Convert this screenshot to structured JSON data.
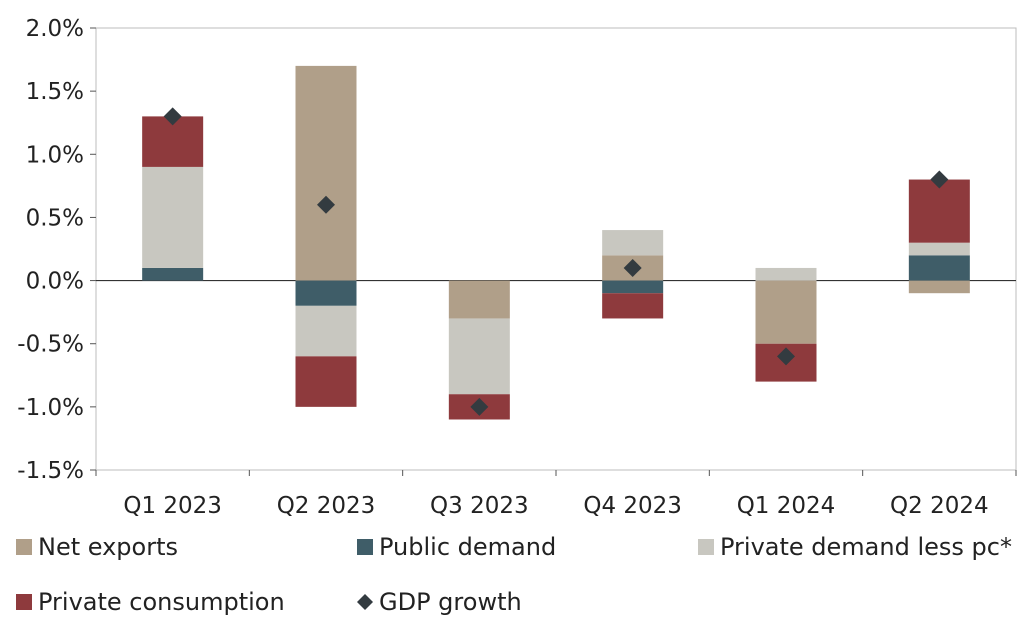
{
  "chart_data": {
    "type": "bar",
    "stacked": true,
    "categories": [
      "Q1 2023",
      "Q2 2023",
      "Q3 2023",
      "Q4 2023",
      "Q1 2024",
      "Q2 2024"
    ],
    "ylim": [
      -1.5,
      2.0
    ],
    "yticks": [
      -1.5,
      -1.0,
      -0.5,
      0.0,
      0.5,
      1.0,
      1.5,
      2.0
    ],
    "ytick_labels": [
      "-1.5%",
      "-1.0%",
      "-0.5%",
      "0.0%",
      "0.5%",
      "1.0%",
      "1.5%",
      "2.0%"
    ],
    "series": [
      {
        "name": "Net exports",
        "color": "#b09f89",
        "values": [
          0.0,
          1.7,
          -0.3,
          0.2,
          -0.5,
          -0.1
        ]
      },
      {
        "name": "Public demand",
        "color": "#3f5d68",
        "values": [
          0.1,
          -0.2,
          0.0,
          -0.1,
          0.0,
          0.2
        ]
      },
      {
        "name": "Private demand less pc*",
        "color": "#c8c7c0",
        "values": [
          0.8,
          -0.4,
          -0.6,
          0.2,
          0.1,
          0.1
        ]
      },
      {
        "name": "Private consumption",
        "color": "#8e3a3d",
        "values": [
          0.4,
          -0.4,
          -0.2,
          -0.2,
          -0.3,
          0.5
        ]
      }
    ],
    "line_series": {
      "name": "GDP growth",
      "marker": "diamond",
      "color": "#333b40",
      "values": [
        1.3,
        0.6,
        -1.0,
        0.1,
        -0.6,
        0.8
      ]
    },
    "legend": [
      "Net exports",
      "Public demand",
      "Private demand less pc*",
      "Private consumption",
      "GDP growth"
    ],
    "legend_position": "bottom",
    "grid": false
  }
}
